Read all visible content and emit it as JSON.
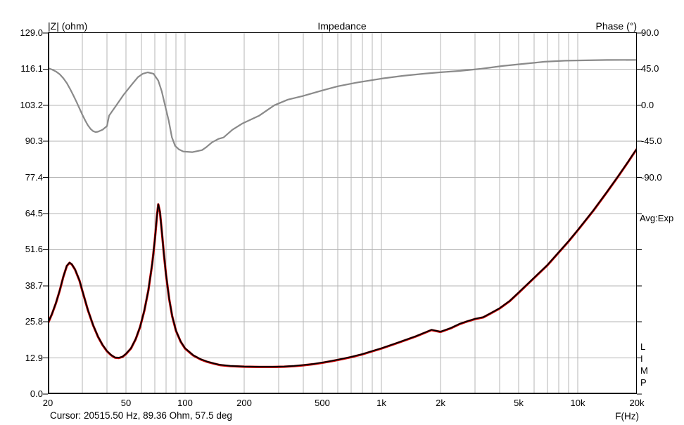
{
  "header": {
    "left_axis_title": "|Z| (ohm)",
    "title": "Impedance",
    "right_axis_title": "Phase (°)"
  },
  "side": {
    "average_label": "Avg:Exp",
    "app_label": "LIMP"
  },
  "footer": {
    "cursor_text": "Cursor: 20515.50 Hz, 89.36 Ohm, 57.5 deg",
    "x_axis_label": "F(Hz)"
  },
  "chart_data": {
    "type": "line",
    "title": "Impedance",
    "grid_color": "#b4b4b4",
    "x_axis": {
      "label": "F(Hz)",
      "scale": "log",
      "min": 20,
      "max": 20000,
      "tick_values": [
        20,
        50,
        100,
        200,
        500,
        1000,
        2000,
        5000,
        10000,
        20000
      ],
      "tick_labels": [
        "20",
        "50",
        "100",
        "200",
        "500",
        "1k",
        "2k",
        "5k",
        "10k",
        "20k"
      ],
      "gridlines": [
        30,
        40,
        50,
        60,
        70,
        80,
        90,
        100,
        200,
        300,
        400,
        500,
        600,
        700,
        800,
        900,
        1000,
        2000,
        3000,
        4000,
        5000,
        6000,
        7000,
        8000,
        9000,
        10000
      ]
    },
    "y_left_axis": {
      "label": "|Z| (ohm)",
      "min": 0,
      "max": 129,
      "tick_labels_top_to_bottom": [
        "129.0",
        "116.1",
        "103.2",
        "90.3",
        "77.4",
        "64.5",
        "51.6",
        "38.7",
        "25.8",
        "12.9",
        "0.0"
      ]
    },
    "y_right_axis": {
      "label": "Phase (°)",
      "top_value": 90,
      "deg_per_division": 45,
      "tick_labels_top_to_bottom": [
        "90.0",
        "45.0",
        "0.0",
        "-45.0",
        "-90.0"
      ]
    },
    "cursor": {
      "frequency_hz": 20515.5,
      "impedance_ohm": 89.36,
      "phase_deg": 57.5
    },
    "series": [
      {
        "name": "impedance-magnitude",
        "unit": "ohm",
        "color_measured": "#cc0000",
        "color_overlay": "#000000",
        "points": [
          [
            20,
            25.2
          ],
          [
            21,
            28.6
          ],
          [
            22,
            32.5
          ],
          [
            23,
            37.0
          ],
          [
            24,
            42.0
          ],
          [
            25,
            45.8
          ],
          [
            25.8,
            46.9
          ],
          [
            26.5,
            46.3
          ],
          [
            27.5,
            44.5
          ],
          [
            29,
            40.5
          ],
          [
            30,
            36.8
          ],
          [
            32,
            30.0
          ],
          [
            34,
            24.6
          ],
          [
            36,
            20.5
          ],
          [
            38,
            17.5
          ],
          [
            40,
            15.3
          ],
          [
            42,
            13.9
          ],
          [
            44,
            13.0
          ],
          [
            46,
            12.9
          ],
          [
            48,
            13.3
          ],
          [
            50,
            14.3
          ],
          [
            53,
            16.3
          ],
          [
            56,
            19.6
          ],
          [
            59,
            24.0
          ],
          [
            62,
            29.8
          ],
          [
            65,
            37.0
          ],
          [
            68,
            46.5
          ],
          [
            70,
            54.5
          ],
          [
            72,
            64.0
          ],
          [
            73,
            67.8
          ],
          [
            74.5,
            65.0
          ],
          [
            76,
            58.5
          ],
          [
            78,
            50.0
          ],
          [
            80,
            42.5
          ],
          [
            83,
            34.0
          ],
          [
            86,
            27.8
          ],
          [
            90,
            22.5
          ],
          [
            95,
            18.7
          ],
          [
            100,
            16.3
          ],
          [
            110,
            13.8
          ],
          [
            120,
            12.4
          ],
          [
            130,
            11.5
          ],
          [
            140,
            10.9
          ],
          [
            150,
            10.4
          ],
          [
            170,
            10.0
          ],
          [
            200,
            9.8
          ],
          [
            240,
            9.7
          ],
          [
            280,
            9.7
          ],
          [
            320,
            9.8
          ],
          [
            360,
            10.0
          ],
          [
            400,
            10.3
          ],
          [
            450,
            10.7
          ],
          [
            500,
            11.2
          ],
          [
            560,
            11.8
          ],
          [
            630,
            12.5
          ],
          [
            700,
            13.2
          ],
          [
            800,
            14.2
          ],
          [
            900,
            15.3
          ],
          [
            1000,
            16.3
          ],
          [
            1200,
            18.2
          ],
          [
            1500,
            20.6
          ],
          [
            1800,
            22.9
          ],
          [
            2000,
            22.2
          ],
          [
            2250,
            23.5
          ],
          [
            2500,
            25.0
          ],
          [
            2750,
            26.0
          ],
          [
            3000,
            26.8
          ],
          [
            3300,
            27.4
          ],
          [
            3600,
            28.8
          ],
          [
            4000,
            30.6
          ],
          [
            4500,
            33.2
          ],
          [
            5000,
            36.2
          ],
          [
            6000,
            41.5
          ],
          [
            7000,
            46.0
          ],
          [
            8000,
            50.6
          ],
          [
            9000,
            54.6
          ],
          [
            10000,
            58.5
          ],
          [
            12000,
            65.5
          ],
          [
            14000,
            71.9
          ],
          [
            16000,
            77.6
          ],
          [
            18000,
            82.8
          ],
          [
            19000,
            85.3
          ],
          [
            20000,
            87.6
          ]
        ]
      },
      {
        "name": "phase",
        "unit": "deg",
        "color": "#8a8a8a",
        "points": [
          [
            20,
            46.3
          ],
          [
            21,
            44.5
          ],
          [
            22,
            42.0
          ],
          [
            23,
            38.5
          ],
          [
            24,
            33.5
          ],
          [
            25,
            27.5
          ],
          [
            26,
            20.0
          ],
          [
            27,
            12.0
          ],
          [
            28,
            4.0
          ],
          [
            29,
            -4.0
          ],
          [
            30,
            -12.0
          ],
          [
            31,
            -19.0
          ],
          [
            32,
            -25.0
          ],
          [
            33,
            -29.5
          ],
          [
            34,
            -32.3
          ],
          [
            35,
            -33.4
          ],
          [
            36,
            -33.0
          ],
          [
            38,
            -30.5
          ],
          [
            40,
            -26.0
          ],
          [
            41,
            -13.0
          ],
          [
            44.7,
            0.0
          ],
          [
            48.6,
            13.0
          ],
          [
            53,
            24.5
          ],
          [
            57.5,
            35.0
          ],
          [
            61,
            39.3
          ],
          [
            64.5,
            41.0
          ],
          [
            69,
            39.3
          ],
          [
            73,
            30.6
          ],
          [
            76,
            17.5
          ],
          [
            79,
            0.0
          ],
          [
            82.5,
            -19.0
          ],
          [
            85.7,
            -40.0
          ],
          [
            89,
            -50.7
          ],
          [
            93,
            -55.0
          ],
          [
            98,
            -57.7
          ],
          [
            109,
            -58.5
          ],
          [
            122,
            -55.9
          ],
          [
            128,
            -52.4
          ],
          [
            137,
            -46.3
          ],
          [
            148,
            -41.9
          ],
          [
            157,
            -40.2
          ],
          [
            174,
            -30.6
          ],
          [
            196,
            -22.7
          ],
          [
            238,
            -13.1
          ],
          [
            285,
            0.0
          ],
          [
            334,
            7.0
          ],
          [
            396,
            11.4
          ],
          [
            497,
            18.3
          ],
          [
            600,
            23.6
          ],
          [
            740,
            28.0
          ],
          [
            1000,
            33.2
          ],
          [
            1290,
            36.7
          ],
          [
            1650,
            39.3
          ],
          [
            2000,
            41.1
          ],
          [
            2520,
            42.8
          ],
          [
            3230,
            45.4
          ],
          [
            4140,
            48.9
          ],
          [
            5290,
            51.6
          ],
          [
            6760,
            54.2
          ],
          [
            8630,
            55.5
          ],
          [
            11030,
            55.9
          ],
          [
            14100,
            56.4
          ],
          [
            20000,
            56.5
          ]
        ]
      }
    ]
  }
}
